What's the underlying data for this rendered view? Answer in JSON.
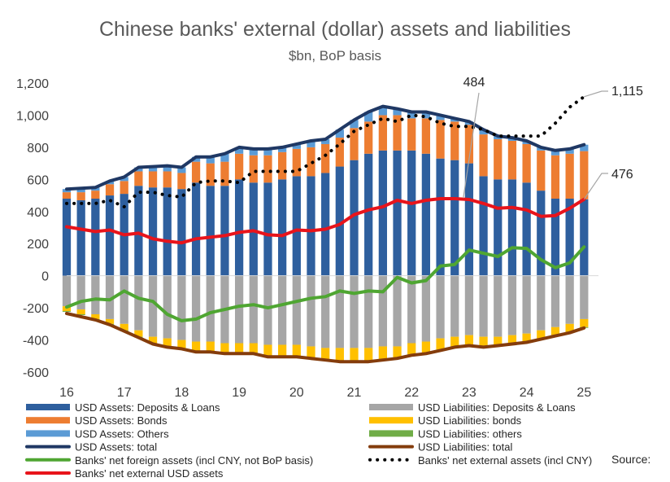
{
  "chart_data": {
    "type": "bar",
    "title": "Chinese banks' external (dollar) assets and liabilities",
    "subtitle": "$bn, BoP basis",
    "ylim": [
      -600,
      1200
    ],
    "y_ticks": [
      -600,
      -400,
      -200,
      0,
      200,
      400,
      600,
      800,
      1000,
      1200
    ],
    "x_range": [
      2016,
      2025.25
    ],
    "x_ticks": [
      {
        "value": 2016,
        "label": "16"
      },
      {
        "value": 2017,
        "label": "17"
      },
      {
        "value": 2018,
        "label": "18"
      },
      {
        "value": 2019,
        "label": "19"
      },
      {
        "value": 2020,
        "label": "20"
      },
      {
        "value": 2021,
        "label": "21"
      },
      {
        "value": 2022,
        "label": "22"
      },
      {
        "value": 2023,
        "label": "23"
      },
      {
        "value": 2024,
        "label": "24"
      },
      {
        "value": 2025,
        "label": "25"
      }
    ],
    "x": [
      2016.0,
      2016.25,
      2016.5,
      2016.75,
      2017.0,
      2017.25,
      2017.5,
      2017.75,
      2018.0,
      2018.25,
      2018.5,
      2018.75,
      2019.0,
      2019.25,
      2019.5,
      2019.75,
      2020.0,
      2020.25,
      2020.5,
      2020.75,
      2021.0,
      2021.25,
      2021.5,
      2021.75,
      2022.0,
      2022.25,
      2022.5,
      2022.75,
      2023.0,
      2023.25,
      2023.5,
      2023.75,
      2024.0,
      2024.25,
      2024.5,
      2024.75,
      2025.0
    ],
    "series": [
      {
        "name": "USD Assets: Deposits & Loans",
        "kind": "bar",
        "stack": "assets",
        "color": "#2e5f9e",
        "values": [
          480,
          470,
          480,
          500,
          510,
          560,
          550,
          550,
          540,
          580,
          560,
          560,
          600,
          580,
          580,
          600,
          620,
          620,
          640,
          680,
          720,
          760,
          780,
          780,
          780,
          760,
          730,
          720,
          700,
          620,
          600,
          600,
          580,
          530,
          480,
          480,
          476
        ]
      },
      {
        "name": "USD Assets: Bonds",
        "kind": "bar",
        "stack": "assets",
        "color": "#ed7d31",
        "values": [
          40,
          50,
          50,
          70,
          80,
          90,
          100,
          100,
          100,
          130,
          140,
          150,
          160,
          170,
          170,
          170,
          170,
          180,
          180,
          180,
          200,
          200,
          220,
          220,
          200,
          220,
          240,
          240,
          240,
          260,
          250,
          240,
          240,
          250,
          270,
          280,
          300
        ]
      },
      {
        "name": "USD Assets: Others",
        "kind": "bar",
        "stack": "assets",
        "color": "#5b9bd5",
        "values": [
          20,
          25,
          20,
          20,
          25,
          25,
          30,
          35,
          35,
          30,
          40,
          50,
          40,
          40,
          40,
          30,
          30,
          40,
          30,
          50,
          50,
          60,
          55,
          40,
          40,
          40,
          30,
          20,
          20,
          30,
          20,
          20,
          20,
          20,
          30,
          30,
          40
        ]
      },
      {
        "name": "USD Liabilities: Deposits & Loans",
        "kind": "bar",
        "stack": "liabilities",
        "color": "#a6a6a6",
        "values": [
          -190,
          -210,
          -240,
          -270,
          -300,
          -340,
          -380,
          -390,
          -400,
          -410,
          -410,
          -420,
          -420,
          -420,
          -430,
          -430,
          -430,
          -440,
          -450,
          -450,
          -450,
          -450,
          -440,
          -440,
          -420,
          -410,
          -390,
          -380,
          -370,
          -380,
          -380,
          -370,
          -360,
          -340,
          -320,
          -300,
          -270
        ]
      },
      {
        "name": "USD Liabilities: bonds",
        "kind": "bar",
        "stack": "liabilities",
        "color": "#ffc000",
        "values": [
          -30,
          -30,
          -30,
          -30,
          -40,
          -40,
          -40,
          -50,
          -50,
          -60,
          -60,
          -60,
          -60,
          -60,
          -70,
          -70,
          -70,
          -70,
          -70,
          -80,
          -80,
          -80,
          -80,
          -70,
          -70,
          -70,
          -70,
          -60,
          -60,
          -60,
          -50,
          -50,
          -50,
          -50,
          -50,
          -50,
          -50
        ]
      },
      {
        "name": "USD Liabilities: others",
        "kind": "bar",
        "stack": "liabilities",
        "color": "#70ad47",
        "values": [
          -5,
          -5,
          -5,
          -5,
          -5,
          -5,
          -5,
          -5,
          -5,
          -5,
          -5,
          -5,
          -5,
          -5,
          -5,
          -5,
          -5,
          -5,
          -5,
          -5,
          -5,
          -5,
          -5,
          -5,
          -5,
          -5,
          -5,
          -5,
          -5,
          -5,
          -5,
          -5,
          -5,
          -5,
          -5,
          -5,
          -5
        ]
      },
      {
        "name": "USD Assets: total",
        "kind": "line",
        "color": "#1f3864",
        "width": 4,
        "dash": "",
        "values": [
          540,
          545,
          550,
          590,
          615,
          675,
          680,
          685,
          675,
          740,
          740,
          760,
          800,
          790,
          790,
          800,
          820,
          840,
          850,
          910,
          970,
          1020,
          1055,
          1040,
          1020,
          1020,
          1000,
          980,
          960,
          910,
          870,
          860,
          840,
          800,
          780,
          790,
          816
        ]
      },
      {
        "name": "USD Liabilities: total",
        "kind": "line",
        "color": "#843c0c",
        "width": 4,
        "dash": "",
        "values": [
          -235,
          -255,
          -275,
          -305,
          -345,
          -385,
          -425,
          -445,
          -455,
          -475,
          -475,
          -485,
          -485,
          -485,
          -505,
          -505,
          -505,
          -515,
          -525,
          -535,
          -535,
          -535,
          -525,
          -515,
          -495,
          -485,
          -465,
          -445,
          -435,
          -445,
          -435,
          -425,
          -415,
          -395,
          -375,
          -355,
          -325
        ]
      },
      {
        "name": "Banks' net foreign assets (incl CNY, not BoP basis)",
        "kind": "line",
        "color": "#4fa632",
        "width": 4,
        "dash": "",
        "values": [
          -195,
          -160,
          -145,
          -150,
          -95,
          -140,
          -160,
          -240,
          -280,
          -270,
          -230,
          -210,
          -190,
          -180,
          -200,
          -180,
          -160,
          -140,
          -130,
          -95,
          -110,
          -95,
          -100,
          -10,
          -45,
          -30,
          60,
          70,
          160,
          140,
          120,
          175,
          170,
          100,
          50,
          80,
          180
        ]
      },
      {
        "name": "Banks' net external assets (incl CNY)",
        "kind": "line",
        "color": "#000000",
        "width": 4,
        "dash": "0.1 9",
        "values": [
          450,
          450,
          450,
          470,
          430,
          520,
          520,
          500,
          490,
          580,
          590,
          590,
          580,
          650,
          650,
          650,
          650,
          700,
          750,
          820,
          900,
          940,
          980,
          960,
          1000,
          990,
          950,
          930,
          930,
          910,
          870,
          870,
          870,
          870,
          950,
          1050,
          1115
        ]
      },
      {
        "name": "Banks' net external USD assets",
        "kind": "line",
        "color": "#e8141b",
        "width": 4,
        "dash": "",
        "values": [
          305,
          290,
          275,
          285,
          255,
          265,
          230,
          215,
          205,
          230,
          240,
          250,
          270,
          280,
          255,
          250,
          285,
          280,
          290,
          320,
          380,
          410,
          430,
          470,
          450,
          470,
          480,
          480,
          475,
          450,
          420,
          425,
          410,
          370,
          375,
          420,
          476
        ]
      }
    ],
    "annotations": [
      {
        "text": "484",
        "x": 2022.9,
        "y": 484
      },
      {
        "text": "1,115",
        "x": 2025.0,
        "y": 1115
      },
      {
        "text": "476",
        "x": 2025.0,
        "y": 476
      }
    ],
    "legend": {
      "placement": "bottom",
      "order": [
        0,
        3,
        1,
        4,
        2,
        5,
        6,
        7,
        8,
        9,
        10
      ]
    },
    "source_label": "Source:",
    "grid": false
  }
}
